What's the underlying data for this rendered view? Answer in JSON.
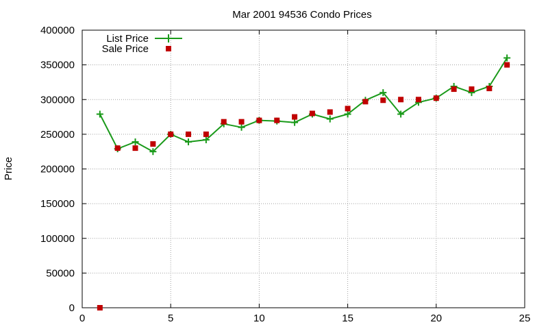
{
  "chart_data": {
    "type": "line",
    "title": "Mar 2001 94536 Condo Prices",
    "xlabel": "",
    "ylabel": "Price",
    "xlim": [
      0,
      25
    ],
    "ylim": [
      0,
      400000
    ],
    "xticks": [
      0,
      5,
      10,
      15,
      20,
      25
    ],
    "yticks": [
      0,
      50000,
      100000,
      150000,
      200000,
      250000,
      300000,
      350000,
      400000
    ],
    "grid": true,
    "legend_position": "top-left",
    "series": [
      {
        "name": "List Price",
        "style": "line-with-plus-markers",
        "color": "#1a9a1a",
        "x": [
          1,
          2,
          3,
          4,
          5,
          6,
          7,
          8,
          9,
          10,
          11,
          12,
          13,
          14,
          15,
          16,
          17,
          18,
          19,
          20,
          21,
          22,
          23,
          24
        ],
        "y": [
          279000,
          229000,
          239000,
          225000,
          250000,
          239000,
          242000,
          265000,
          260000,
          270000,
          269000,
          267000,
          279000,
          272000,
          279000,
          299000,
          310000,
          279000,
          296000,
          302000,
          319000,
          310000,
          319000,
          360000
        ]
      },
      {
        "name": "Sale Price",
        "style": "square-markers",
        "color": "#c00000",
        "x": [
          1,
          2,
          3,
          4,
          5,
          6,
          7,
          8,
          9,
          10,
          11,
          12,
          13,
          14,
          15,
          16,
          17,
          18,
          19,
          20,
          21,
          22,
          23,
          24
        ],
        "y": [
          0,
          230000,
          230000,
          236000,
          250000,
          250000,
          250000,
          268000,
          268000,
          270000,
          270000,
          275000,
          280000,
          282000,
          287000,
          297000,
          299000,
          300000,
          300000,
          302000,
          315000,
          315000,
          316000,
          350000
        ]
      }
    ]
  }
}
